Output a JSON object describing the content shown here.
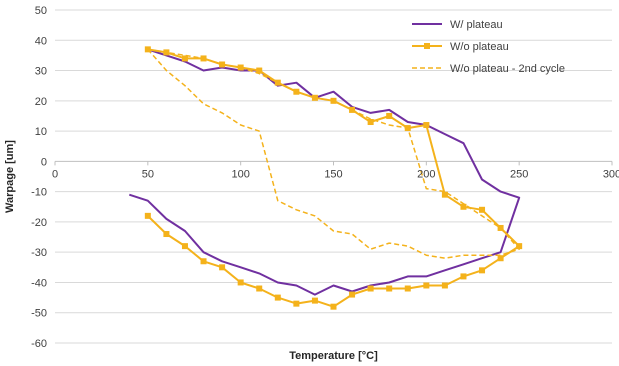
{
  "chart_data": {
    "type": "line",
    "title": "",
    "xlabel": "Temperature [°C]",
    "ylabel": "Warpage [um]",
    "xlim": [
      0,
      300
    ],
    "ylim": [
      -60,
      50
    ],
    "xticks": [
      0,
      50,
      100,
      150,
      200,
      250,
      300
    ],
    "yticks": [
      -60,
      -50,
      -40,
      -30,
      -20,
      -10,
      0,
      10,
      20,
      30,
      40,
      50
    ],
    "grid": "horizontal",
    "legend": "top-right",
    "series": [
      {
        "name": "W/ plateau",
        "color": "#7030A0",
        "style": "solid",
        "marker": "none",
        "points": [
          [
            50,
            37
          ],
          [
            60,
            35
          ],
          [
            70,
            33
          ],
          [
            80,
            30
          ],
          [
            90,
            31
          ],
          [
            100,
            30
          ],
          [
            110,
            30
          ],
          [
            120,
            25
          ],
          [
            130,
            26
          ],
          [
            140,
            21
          ],
          [
            150,
            23
          ],
          [
            160,
            18
          ],
          [
            170,
            16
          ],
          [
            180,
            17
          ],
          [
            190,
            13
          ],
          [
            200,
            12
          ],
          [
            210,
            9
          ],
          [
            220,
            6
          ],
          [
            230,
            -6
          ],
          [
            240,
            -10
          ],
          [
            250,
            -12
          ],
          [
            240,
            -30
          ],
          [
            230,
            -32
          ],
          [
            220,
            -34
          ],
          [
            210,
            -36
          ],
          [
            200,
            -38
          ],
          [
            190,
            -38
          ],
          [
            180,
            -40
          ],
          [
            170,
            -41
          ],
          [
            160,
            -43
          ],
          [
            150,
            -41
          ],
          [
            140,
            -44
          ],
          [
            130,
            -41
          ],
          [
            120,
            -40
          ],
          [
            110,
            -37
          ],
          [
            100,
            -35
          ],
          [
            90,
            -33
          ],
          [
            80,
            -30
          ],
          [
            70,
            -23
          ],
          [
            60,
            -19
          ],
          [
            50,
            -13
          ],
          [
            40,
            -11
          ]
        ]
      },
      {
        "name": "W/o plateau",
        "color": "#F4B21B",
        "style": "solid",
        "marker": "square",
        "points": [
          [
            50,
            37
          ],
          [
            60,
            36
          ],
          [
            70,
            34
          ],
          [
            80,
            34
          ],
          [
            90,
            32
          ],
          [
            100,
            31
          ],
          [
            110,
            30
          ],
          [
            120,
            26
          ],
          [
            130,
            23
          ],
          [
            140,
            21
          ],
          [
            150,
            20
          ],
          [
            160,
            17
          ],
          [
            170,
            13
          ],
          [
            180,
            15
          ],
          [
            190,
            11
          ],
          [
            200,
            12
          ],
          [
            210,
            -11
          ],
          [
            220,
            -15
          ],
          [
            230,
            -16
          ],
          [
            240,
            -22
          ],
          [
            250,
            -28
          ],
          [
            240,
            -32
          ],
          [
            230,
            -36
          ],
          [
            220,
            -38
          ],
          [
            210,
            -41
          ],
          [
            200,
            -41
          ],
          [
            190,
            -42
          ],
          [
            180,
            -42
          ],
          [
            170,
            -42
          ],
          [
            160,
            -44
          ],
          [
            150,
            -48
          ],
          [
            140,
            -46
          ],
          [
            130,
            -47
          ],
          [
            120,
            -45
          ],
          [
            110,
            -42
          ],
          [
            100,
            -40
          ],
          [
            90,
            -35
          ],
          [
            80,
            -33
          ],
          [
            70,
            -28
          ],
          [
            60,
            -24
          ],
          [
            50,
            -18
          ]
        ]
      },
      {
        "name": "W/o plateau - 2nd cycle",
        "color": "#F4B21B",
        "style": "dashed",
        "marker": "none",
        "points": [
          [
            50,
            37
          ],
          [
            60,
            30
          ],
          [
            70,
            25
          ],
          [
            80,
            19
          ],
          [
            90,
            16
          ],
          [
            100,
            12
          ],
          [
            110,
            10
          ],
          [
            120,
            -13
          ],
          [
            130,
            -16
          ],
          [
            140,
            -18
          ],
          [
            150,
            -23
          ],
          [
            160,
            -24
          ],
          [
            170,
            -29
          ],
          [
            180,
            -27
          ],
          [
            190,
            -28
          ],
          [
            200,
            -31
          ],
          [
            210,
            -32
          ],
          [
            220,
            -31
          ],
          [
            230,
            -31
          ],
          [
            240,
            -31
          ],
          [
            250,
            -29
          ],
          [
            240,
            -22
          ],
          [
            230,
            -18
          ],
          [
            220,
            -14
          ],
          [
            210,
            -10
          ],
          [
            200,
            -9
          ],
          [
            190,
            11
          ],
          [
            180,
            12
          ],
          [
            170,
            14
          ],
          [
            160,
            17
          ],
          [
            150,
            20
          ],
          [
            140,
            21
          ],
          [
            130,
            23
          ],
          [
            120,
            26
          ],
          [
            110,
            29
          ],
          [
            100,
            31
          ],
          [
            90,
            32
          ],
          [
            80,
            34
          ],
          [
            70,
            35
          ],
          [
            60,
            36
          ],
          [
            50,
            37
          ]
        ]
      }
    ]
  }
}
